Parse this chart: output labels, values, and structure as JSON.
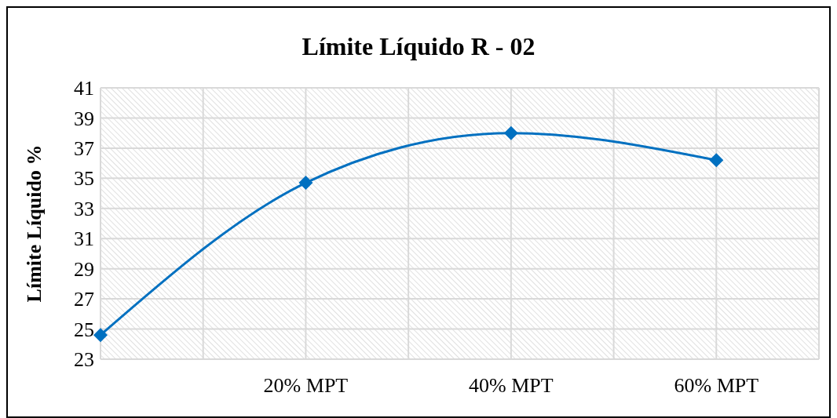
{
  "chart_data": {
    "type": "line",
    "title": "Límite Líquido R - 02",
    "ylabel": "Límite Líquido %",
    "categories": [
      null,
      "20% MPT",
      "40% MPT",
      "60% MPT"
    ],
    "series": [
      {
        "color": "#0070c0",
        "values": [
          24.6,
          34.7,
          38.0,
          36.2
        ]
      }
    ],
    "ylim": [
      23,
      41
    ],
    "yticks": [
      23,
      25,
      27,
      29,
      31,
      33,
      35,
      37,
      39,
      41
    ],
    "grid": true,
    "marker": "diamond",
    "line_style": "solid"
  }
}
